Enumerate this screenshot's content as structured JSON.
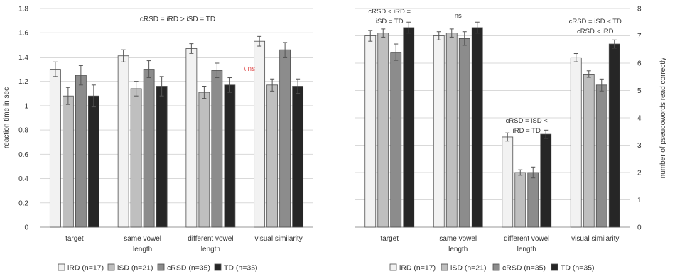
{
  "chart_data": [
    {
      "type": "bar",
      "categories": [
        [
          "target"
        ],
        [
          "same vowel",
          "length"
        ],
        [
          "different vowel",
          "length"
        ],
        [
          "visual similarity"
        ]
      ],
      "series": [
        {
          "name": "iRD (n=17)",
          "values": [
            1.3,
            1.41,
            1.47,
            1.53
          ],
          "errors": [
            0.06,
            0.05,
            0.04,
            0.04
          ],
          "color": "#f2f2f2"
        },
        {
          "name": "iSD (n=21)",
          "values": [
            1.08,
            1.14,
            1.11,
            1.17
          ],
          "errors": [
            0.07,
            0.06,
            0.05,
            0.05
          ],
          "color": "#bfbfbf"
        },
        {
          "name": "cRSD (n=35)",
          "values": [
            1.25,
            1.3,
            1.29,
            1.46
          ],
          "errors": [
            0.08,
            0.07,
            0.06,
            0.06
          ],
          "color": "#8c8c8c"
        },
        {
          "name": "TD (n=35)",
          "values": [
            1.08,
            1.16,
            1.17,
            1.16
          ],
          "errors": [
            0.09,
            0.08,
            0.06,
            0.06
          ],
          "color": "#262626"
        }
      ],
      "ylabel": "reaction time in sec",
      "ylim": [
        0,
        1.8
      ],
      "yticks": [
        "0",
        "0.2",
        "0.4",
        "0.6",
        "0.8",
        "1",
        "1.2",
        "1.4",
        "1.6",
        "1.8"
      ],
      "grid": true,
      "legend": "bottom",
      "annotations": {
        "main": [
          "cRSD = iRD > iSD = TD"
        ],
        "ns": [
          "\\ ns"
        ],
        "ns_color": "#e05050"
      }
    },
    {
      "type": "bar",
      "categories": [
        [
          "target"
        ],
        [
          "same vowel",
          "length"
        ],
        [
          "different vowel",
          "length"
        ],
        [
          "visual similarity"
        ]
      ],
      "series": [
        {
          "name": "iRD (n=17)",
          "values": [
            7.0,
            7.0,
            3.3,
            6.2
          ],
          "errors": [
            0.2,
            0.15,
            0.15,
            0.15
          ],
          "color": "#f2f2f2"
        },
        {
          "name": "iSD (n=21)",
          "values": [
            7.1,
            7.1,
            2.0,
            5.6
          ],
          "errors": [
            0.15,
            0.15,
            0.1,
            0.12
          ],
          "color": "#bfbfbf"
        },
        {
          "name": "cRSD (n=35)",
          "values": [
            6.4,
            6.9,
            2.0,
            5.2
          ],
          "errors": [
            0.3,
            0.25,
            0.2,
            0.22
          ],
          "color": "#8c8c8c"
        },
        {
          "name": "TD (n=35)",
          "values": [
            7.3,
            7.3,
            3.4,
            6.7
          ],
          "errors": [
            0.2,
            0.2,
            0.15,
            0.15
          ],
          "color": "#262626"
        }
      ],
      "ylabel": "number of pseudowords read correctly",
      "ylim": [
        0,
        8
      ],
      "yticks": [
        "0",
        "1",
        "2",
        "3",
        "4",
        "5",
        "6",
        "7",
        "8"
      ],
      "grid": true,
      "legend": "bottom",
      "annotations": {
        "target": [
          "cRSD < iRD =",
          "iSD = TD"
        ],
        "same": [
          "ns"
        ],
        "different": [
          "cRSD = iSD <",
          "iRD = TD"
        ],
        "visual": [
          "cRSD = iSD < TD",
          "cRSD < iRD"
        ]
      }
    }
  ]
}
